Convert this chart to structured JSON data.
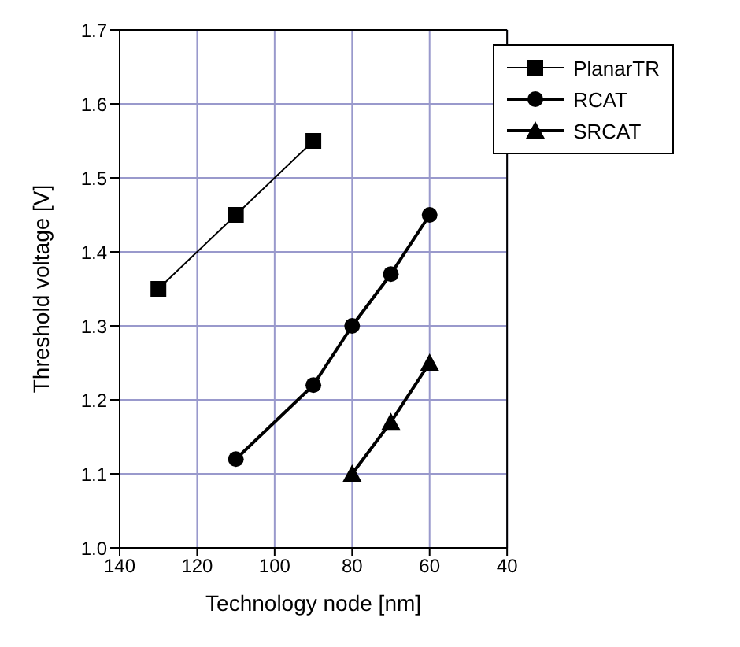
{
  "chart_data": {
    "type": "line",
    "xlabel": "Technology node [nm]",
    "ylabel": "Threshold voltage [V]",
    "xlim": [
      140,
      40
    ],
    "xticks": [
      140,
      120,
      100,
      80,
      60,
      40
    ],
    "ylim": [
      1.0,
      1.7
    ],
    "yticks": [
      {
        "value": 1.0,
        "label": "1.0"
      },
      1.1,
      1.2,
      1.3,
      1.4,
      1.5,
      1.6,
      1.7
    ],
    "grid": true,
    "legend": "top right",
    "series": [
      {
        "name": "PlanarTR",
        "color": "#000000",
        "marker": "square",
        "x": [
          130,
          110,
          90
        ],
        "values": [
          1.35,
          1.45,
          1.55
        ]
      },
      {
        "name": "RCAT",
        "color": "#000000",
        "marker": "circle",
        "x": [
          110,
          90,
          80,
          70,
          60
        ],
        "values": [
          1.12,
          1.22,
          1.3,
          1.37,
          1.45
        ]
      },
      {
        "name": "SRCAT",
        "color": "#000000",
        "marker": "triangle",
        "x": [
          80,
          70,
          60
        ],
        "values": [
          1.1,
          1.17,
          1.25
        ]
      }
    ]
  }
}
